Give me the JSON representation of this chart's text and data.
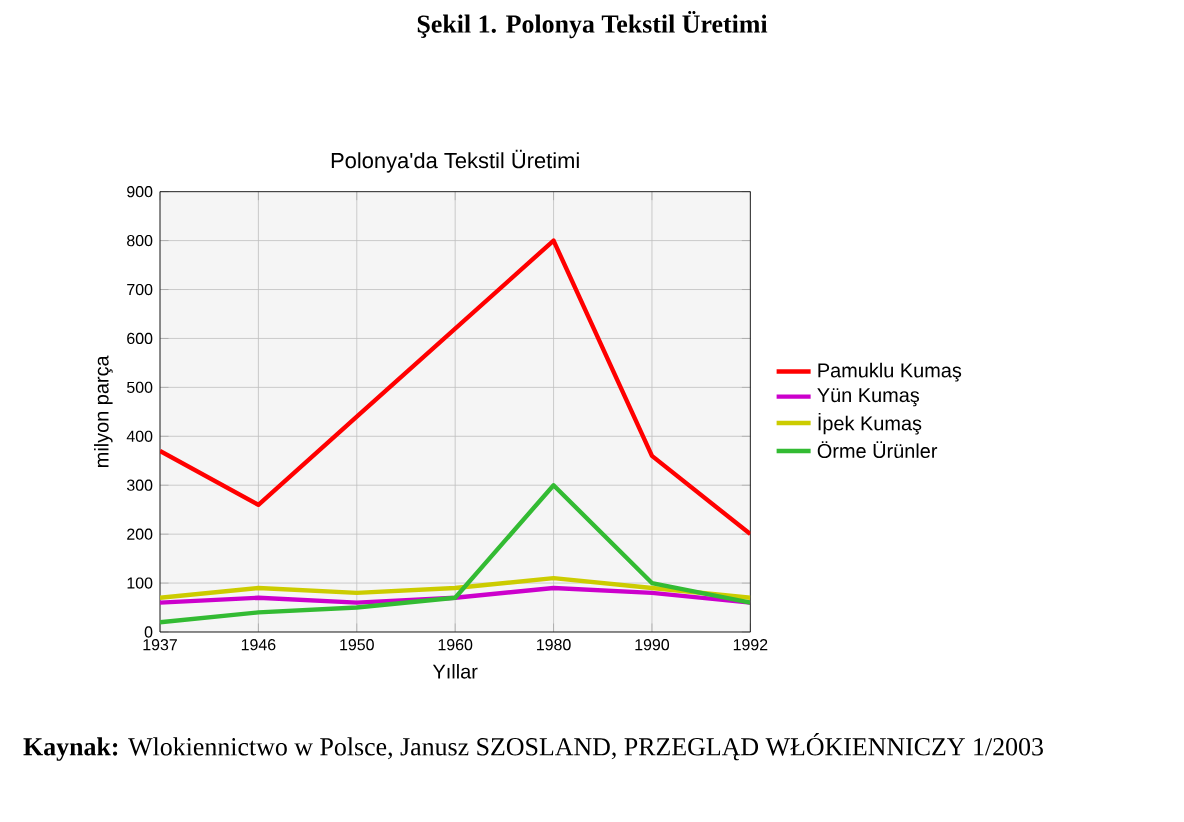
{
  "chart_data": {
    "type": "line",
    "title": "Şekil 1. Polonya Tekstil Üretimi",
    "subtitle": "Polonya'da Tekstil Üretimi",
    "xlabel": "Yıllar",
    "ylabel": "milyon parça",
    "categories": [
      "1937",
      "1946",
      "1950",
      "1960",
      "1980",
      "1990",
      "1992"
    ],
    "series": [
      {
        "name": "Pamuklu Kumaş",
        "color": "#ff0000",
        "values": [
          370,
          260,
          440,
          620,
          800,
          360,
          200
        ]
      },
      {
        "name": "Yün Kumaş",
        "color": "#cc00cc",
        "values": [
          60,
          70,
          60,
          70,
          90,
          80,
          60
        ]
      },
      {
        "name": "İpek Kumaş",
        "color": "#cccc00",
        "values": [
          70,
          90,
          80,
          90,
          110,
          90,
          70
        ]
      },
      {
        "name": "Örme Ürünler",
        "color": "#33bb33",
        "values": [
          20,
          40,
          50,
          70,
          300,
          100,
          60
        ]
      }
    ],
    "ylim": [
      0,
      900
    ],
    "yticks": [
      0,
      100,
      200,
      300,
      400,
      500,
      600,
      700,
      800,
      900
    ],
    "grid": true,
    "legend": "right",
    "annotations": [
      "**Kaynak:** Wlokiennictwo w Polsce, Janusz SZOSLAND, PRZEGLĄD WŁÓKIENNICZY 1/2003"
    ]
  }
}
